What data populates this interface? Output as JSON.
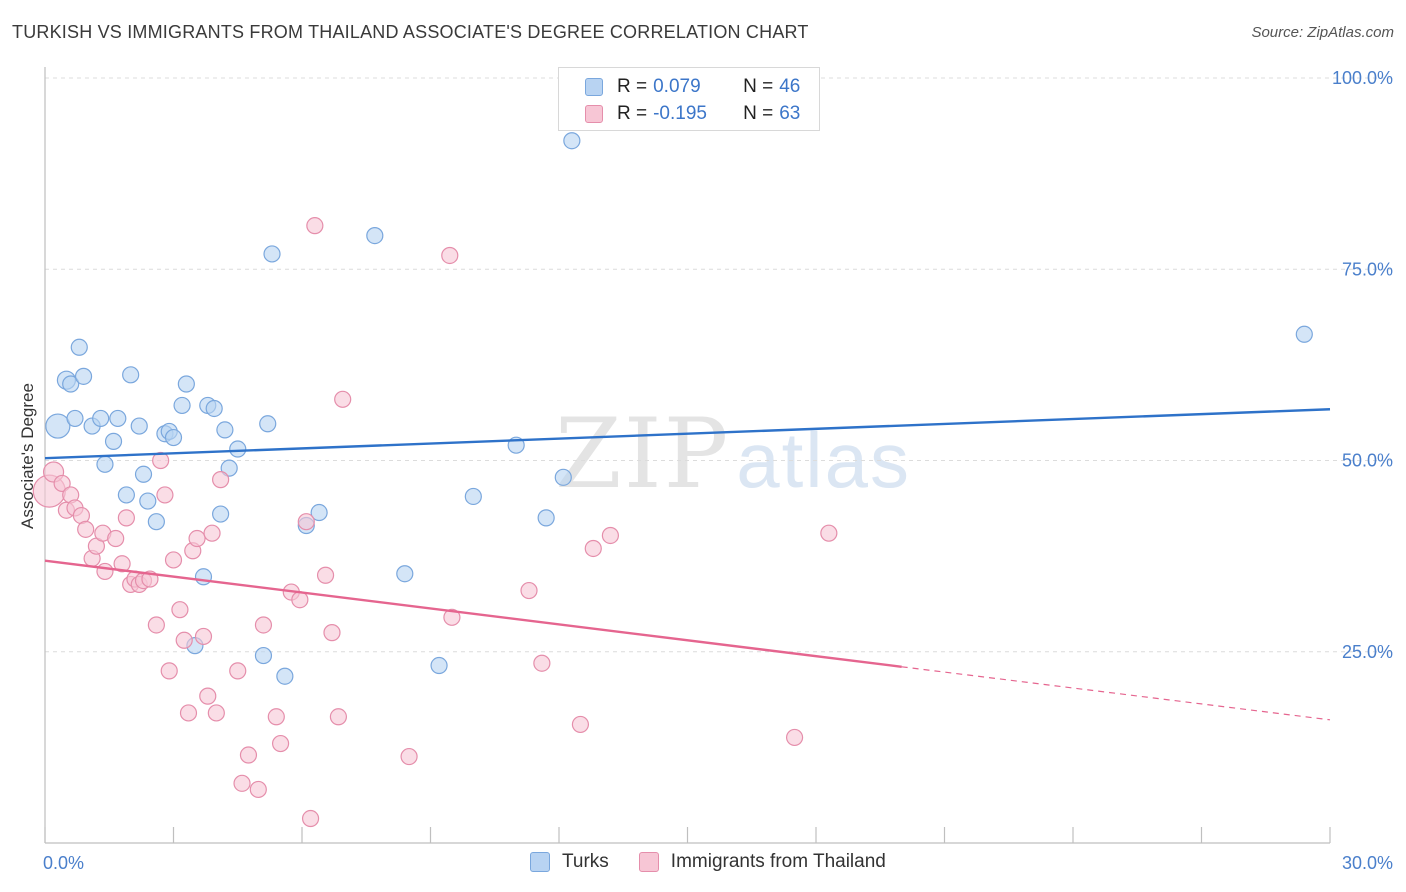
{
  "title": "TURKISH VS IMMIGRANTS FROM THAILAND ASSOCIATE'S DEGREE CORRELATION CHART",
  "source": "Source: ZipAtlas.com",
  "watermark": {
    "zip": "ZIP",
    "atlas": "atlas"
  },
  "legend_top": {
    "rows": [
      {
        "r_label": "R =",
        "r_value": "0.079",
        "n_label": "N =",
        "n_value": "46"
      },
      {
        "r_label": "R =",
        "r_value": "-0.195",
        "n_label": "N =",
        "n_value": "63"
      }
    ]
  },
  "legend_bottom": [
    "Turks",
    "Immigrants from Thailand"
  ],
  "colors": {
    "turks_fill": "#b8d3f2",
    "turks_stroke": "#7aa7dd",
    "turks_line": "#2e72c9",
    "thai_fill": "#f7c6d5",
    "thai_stroke": "#e58eab",
    "thai_line": "#e5658f",
    "grid": "#dcdcdc",
    "tick_label": "#4a7fcb"
  },
  "chart_data": {
    "type": "scatter",
    "title": "TURKISH VS IMMIGRANTS FROM THAILAND ASSOCIATE'S DEGREE CORRELATION CHART",
    "xlabel": "",
    "ylabel": "Associate's Degree",
    "xlim": [
      0,
      30
    ],
    "ylim": [
      0,
      100
    ],
    "x_tick_labels": [
      "0.0%",
      "30.0%"
    ],
    "y_tick_labels": [
      "25.0%",
      "50.0%",
      "75.0%",
      "100.0%"
    ],
    "y_ticks": [
      25,
      50,
      75,
      100
    ],
    "grid": true,
    "legend_placement": "top-center",
    "series": [
      {
        "name": "Turks",
        "trend": {
          "x0": 0,
          "y0": 50.3,
          "x1": 30,
          "y1": 56.7,
          "dashed_from": null
        },
        "points": [
          [
            0.3,
            54.5,
            12
          ],
          [
            0.5,
            60.5,
            9
          ],
          [
            0.6,
            60.0,
            8
          ],
          [
            0.7,
            55.5,
            8
          ],
          [
            0.8,
            64.8,
            8
          ],
          [
            0.9,
            61.0,
            8
          ],
          [
            1.1,
            54.5,
            8
          ],
          [
            1.3,
            55.5,
            8
          ],
          [
            1.4,
            49.5,
            8
          ],
          [
            1.6,
            52.5,
            8
          ],
          [
            1.7,
            55.5,
            8
          ],
          [
            1.9,
            45.5,
            8
          ],
          [
            2.0,
            61.2,
            8
          ],
          [
            2.2,
            54.5,
            8
          ],
          [
            2.3,
            48.2,
            8
          ],
          [
            2.4,
            44.7,
            8
          ],
          [
            2.6,
            42.0,
            8
          ],
          [
            2.8,
            53.5,
            8
          ],
          [
            2.9,
            53.8,
            8
          ],
          [
            3.0,
            53.0,
            8
          ],
          [
            3.2,
            57.2,
            8
          ],
          [
            3.3,
            60.0,
            8
          ],
          [
            3.5,
            25.8,
            8
          ],
          [
            3.7,
            34.8,
            8
          ],
          [
            3.8,
            57.2,
            8
          ],
          [
            3.95,
            56.8,
            8
          ],
          [
            4.1,
            43.0,
            8
          ],
          [
            4.2,
            54.0,
            8
          ],
          [
            4.3,
            49.0,
            8
          ],
          [
            4.5,
            51.5,
            8
          ],
          [
            5.1,
            24.5,
            8
          ],
          [
            5.2,
            54.8,
            8
          ],
          [
            5.3,
            77.0,
            8
          ],
          [
            5.6,
            21.8,
            8
          ],
          [
            6.1,
            41.5,
            8
          ],
          [
            6.4,
            43.2,
            8
          ],
          [
            7.7,
            79.4,
            8
          ],
          [
            8.4,
            35.2,
            8
          ],
          [
            9.2,
            23.2,
            8
          ],
          [
            10.0,
            45.3,
            8
          ],
          [
            11.0,
            52.0,
            8
          ],
          [
            11.7,
            42.5,
            8
          ],
          [
            12.1,
            47.8,
            8
          ],
          [
            12.3,
            91.8,
            8
          ],
          [
            29.4,
            66.5,
            8
          ]
        ]
      },
      {
        "name": "Immigrants from Thailand",
        "trend": {
          "x0": 0,
          "y0": 36.9,
          "x1": 30,
          "y1": 16.1,
          "dashed_from": 20
        },
        "points": [
          [
            0.1,
            46.0,
            16
          ],
          [
            0.2,
            48.5,
            10
          ],
          [
            0.4,
            47.0,
            8
          ],
          [
            0.5,
            43.5,
            8
          ],
          [
            0.6,
            45.5,
            8
          ],
          [
            0.7,
            43.8,
            8
          ],
          [
            0.85,
            42.8,
            8
          ],
          [
            0.95,
            41.0,
            8
          ],
          [
            1.1,
            37.2,
            8
          ],
          [
            1.2,
            38.8,
            8
          ],
          [
            1.35,
            40.5,
            8
          ],
          [
            1.4,
            35.5,
            8
          ],
          [
            1.65,
            39.8,
            8
          ],
          [
            1.8,
            36.5,
            8
          ],
          [
            1.9,
            42.5,
            8
          ],
          [
            2.0,
            33.8,
            8
          ],
          [
            2.1,
            34.5,
            8
          ],
          [
            2.2,
            33.8,
            8
          ],
          [
            2.3,
            34.3,
            8
          ],
          [
            2.45,
            34.5,
            8
          ],
          [
            2.6,
            28.5,
            8
          ],
          [
            2.7,
            50.0,
            8
          ],
          [
            2.8,
            45.5,
            8
          ],
          [
            2.9,
            22.5,
            8
          ],
          [
            3.0,
            37.0,
            8
          ],
          [
            3.15,
            30.5,
            8
          ],
          [
            3.25,
            26.5,
            8
          ],
          [
            3.35,
            17.0,
            8
          ],
          [
            3.45,
            38.2,
            8
          ],
          [
            3.55,
            39.8,
            8
          ],
          [
            3.7,
            27.0,
            8
          ],
          [
            3.8,
            19.2,
            8
          ],
          [
            3.9,
            40.5,
            8
          ],
          [
            4.0,
            17.0,
            8
          ],
          [
            4.1,
            47.5,
            8
          ],
          [
            4.5,
            22.5,
            8
          ],
          [
            4.6,
            7.8,
            8
          ],
          [
            4.75,
            11.5,
            8
          ],
          [
            4.98,
            7.0,
            8
          ],
          [
            5.1,
            28.5,
            8
          ],
          [
            5.4,
            16.5,
            8
          ],
          [
            5.5,
            13.0,
            8
          ],
          [
            5.75,
            32.8,
            8
          ],
          [
            5.95,
            31.8,
            8
          ],
          [
            6.1,
            42.0,
            8
          ],
          [
            6.2,
            3.2,
            8
          ],
          [
            6.3,
            80.7,
            8
          ],
          [
            6.55,
            35.0,
            8
          ],
          [
            6.7,
            27.5,
            8
          ],
          [
            6.85,
            16.5,
            8
          ],
          [
            6.95,
            58.0,
            8
          ],
          [
            8.5,
            11.3,
            8
          ],
          [
            9.45,
            76.8,
            8
          ],
          [
            9.5,
            29.5,
            8
          ],
          [
            11.3,
            33.0,
            8
          ],
          [
            11.6,
            23.5,
            8
          ],
          [
            12.5,
            15.5,
            8
          ],
          [
            12.8,
            38.5,
            8
          ],
          [
            13.2,
            40.2,
            8
          ],
          [
            17.5,
            13.8,
            8
          ],
          [
            18.3,
            40.5,
            8
          ]
        ]
      }
    ]
  }
}
